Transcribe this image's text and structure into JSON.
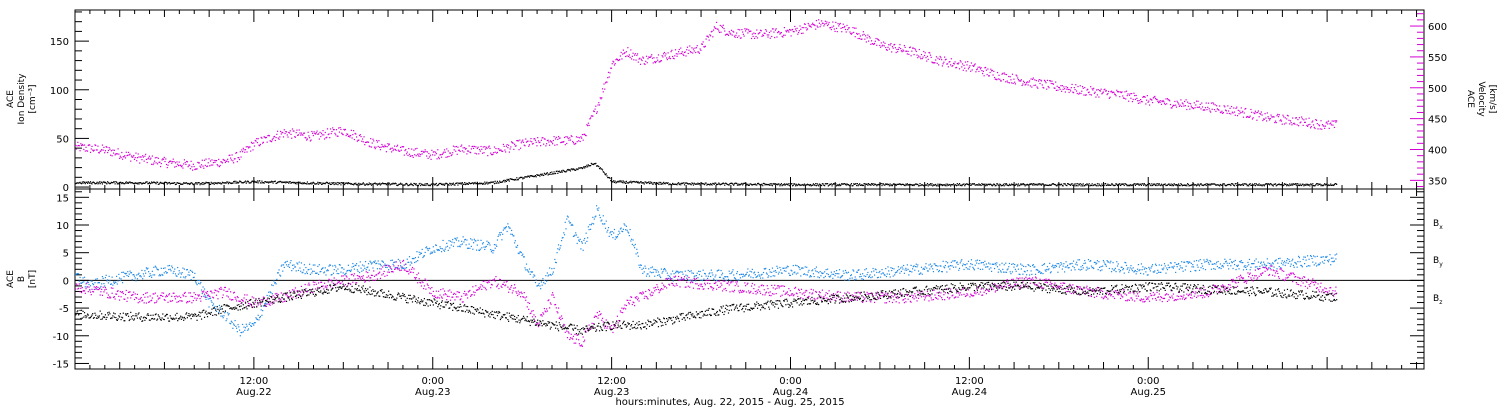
{
  "chart_data": [
    {
      "type": "scatter",
      "panel": "top",
      "ylabel_left": [
        "ACE",
        "Ion Density",
        "[cm⁻³]"
      ],
      "ylabel_right": [
        "ACE",
        "Velocity",
        "[km/s]"
      ],
      "ylim_left": [
        -2,
        182
      ],
      "yticks_left": [
        0,
        50,
        100,
        150
      ],
      "ylim_right": [
        336,
        626
      ],
      "yticks_right": [
        350,
        400,
        450,
        500,
        550,
        600
      ],
      "series": [
        {
          "axis": "left",
          "color": "#000000",
          "x_hours": [
            0,
            4,
            8,
            12,
            18,
            24,
            28,
            30,
            32,
            34,
            34.8,
            35.2,
            36,
            40,
            48,
            60,
            72,
            80,
            84.6
          ],
          "values": [
            5,
            5,
            4,
            6,
            4,
            3,
            5,
            10,
            15,
            20,
            25,
            20,
            6,
            4,
            3,
            3,
            3,
            3,
            3
          ]
        },
        {
          "axis": "right",
          "color": "#d400d4",
          "x_hours": [
            0,
            2,
            4,
            6,
            8,
            10,
            11,
            12,
            14,
            16,
            18,
            20,
            22,
            24,
            26,
            28,
            30,
            32,
            33,
            34,
            35,
            36,
            37,
            38,
            40,
            42,
            43,
            44,
            46,
            48,
            50,
            52,
            54,
            56,
            58,
            60,
            62,
            64,
            66,
            68,
            70,
            72,
            74,
            76,
            78,
            80,
            82,
            84,
            84.6
          ],
          "values": [
            405,
            400,
            388,
            380,
            375,
            382,
            390,
            410,
            428,
            422,
            432,
            410,
            398,
            392,
            402,
            398,
            410,
            415,
            415,
            418,
            470,
            540,
            560,
            545,
            555,
            565,
            600,
            590,
            587,
            592,
            605,
            595,
            570,
            560,
            545,
            535,
            520,
            510,
            502,
            495,
            490,
            480,
            475,
            470,
            463,
            452,
            447,
            440,
            440
          ]
        }
      ]
    },
    {
      "type": "scatter",
      "panel": "bottom",
      "ylabel": [
        "ACE",
        "B",
        "[nT]"
      ],
      "ylim": [
        -16,
        16.5
      ],
      "yticks": [
        -15,
        -10,
        -5,
        0,
        5,
        10,
        15
      ],
      "hline": 0,
      "legend": [
        {
          "label": "B",
          "sub": "x",
          "color": "#000000"
        },
        {
          "label": "B",
          "sub": "y",
          "color": "#1e88e5"
        },
        {
          "label": "B",
          "sub": "z",
          "color": "#d400d4"
        }
      ],
      "series": [
        {
          "name": "Bx",
          "color": "#000000",
          "x_hours": [
            0,
            4,
            8,
            10,
            12,
            14,
            16,
            18,
            20,
            22,
            24,
            26,
            28,
            30,
            32,
            34,
            36,
            38,
            40,
            42,
            44,
            48,
            52,
            56,
            60,
            64,
            68,
            72,
            76,
            80,
            84.6
          ],
          "values": [
            -6,
            -6.5,
            -6.5,
            -5,
            -4,
            -3,
            -2,
            -1,
            -2,
            -3,
            -4,
            -5,
            -6,
            -7,
            -8,
            -9,
            -8,
            -8,
            -7,
            -6,
            -5,
            -4,
            -3,
            -2,
            -1,
            -1,
            -2,
            -1,
            -1.5,
            -2,
            -3
          ]
        },
        {
          "name": "By",
          "color": "#1e88e5",
          "x_hours": [
            0,
            1,
            2,
            4,
            6,
            8,
            9,
            10,
            11,
            12,
            14,
            16,
            18,
            20,
            22,
            24,
            26,
            28,
            29,
            30,
            31,
            32,
            33,
            34,
            35,
            36,
            37,
            38,
            40,
            44,
            48,
            52,
            56,
            60,
            64,
            68,
            72,
            76,
            80,
            84.6
          ],
          "values": [
            1,
            -1,
            0,
            1,
            2,
            1,
            -4,
            -6,
            -9,
            -8,
            3,
            2,
            2,
            3,
            3,
            6,
            7,
            6,
            10,
            4,
            -1,
            2,
            11,
            6,
            13,
            8,
            10,
            2,
            1,
            1,
            2,
            1,
            2,
            3,
            2,
            3,
            2,
            3,
            3,
            4
          ]
        },
        {
          "name": "Bz",
          "color": "#d400d4",
          "x_hours": [
            0,
            2,
            4,
            6,
            8,
            10,
            12,
            14,
            16,
            18,
            20,
            22,
            24,
            26,
            28,
            30,
            31,
            32,
            33,
            34,
            35,
            36,
            37,
            38,
            40,
            44,
            48,
            52,
            56,
            60,
            64,
            68,
            72,
            76,
            80,
            84.6
          ],
          "values": [
            -1,
            -2,
            -3,
            -3,
            -3,
            -2,
            -4,
            -3,
            -1,
            0,
            1,
            3,
            -2,
            -3,
            0,
            -2,
            -8,
            -3,
            -10,
            -11,
            -6,
            -9,
            -4,
            -3,
            0,
            -1,
            -2,
            -3,
            -3,
            -2,
            0,
            -2,
            -3,
            -2,
            2,
            -2
          ]
        }
      ]
    }
  ],
  "time_axis": {
    "xlim_hours": [
      0,
      90.5
    ],
    "major_ticks": [
      {
        "hour": 12,
        "label_top": "12:00",
        "label_bottom": "Aug.22"
      },
      {
        "hour": 24,
        "label_top": "0:00",
        "label_bottom": "Aug.23"
      },
      {
        "hour": 36,
        "label_top": "12:00",
        "label_bottom": "Aug.23"
      },
      {
        "hour": 48,
        "label_top": "0:00",
        "label_bottom": "Aug.24"
      },
      {
        "hour": 60,
        "label_top": "12:00",
        "label_bottom": "Aug.24"
      },
      {
        "hour": 72,
        "label_top": "0:00",
        "label_bottom": "Aug.25"
      }
    ],
    "xlabel": "hours:minutes, Aug. 22, 2015 - Aug. 25, 2015"
  }
}
